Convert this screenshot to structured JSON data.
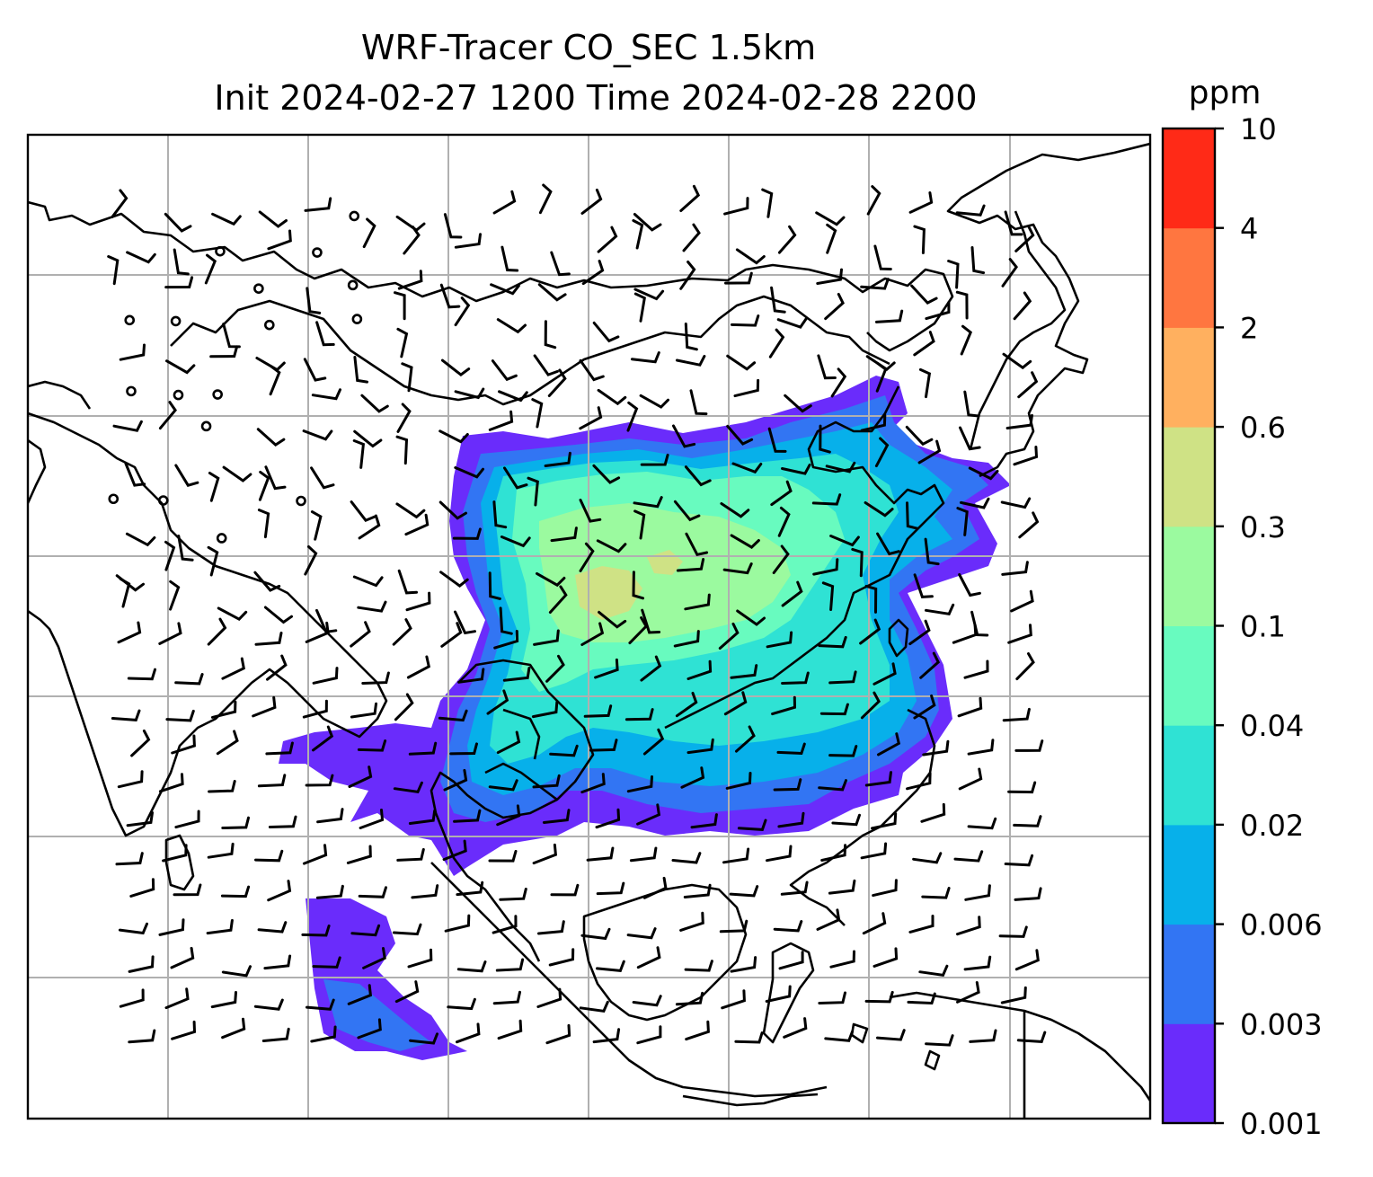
{
  "chart_data": {
    "type": "heatmap",
    "title": "WRF-Tracer CO_SEC 1.5km",
    "subtitle": "Init 2024-02-27 1200 Time 2024-02-28 2200",
    "colorbar": {
      "unit_label": "ppm",
      "tick_labels": [
        "0.001",
        "0.003",
        "0.006",
        "0.02",
        "0.04",
        "0.1",
        "0.3",
        "0.6",
        "2",
        "4",
        "10"
      ],
      "colors": [
        "#6a2cfb",
        "#3275f3",
        "#07b0ea",
        "#2fe2d4",
        "#68fbbf",
        "#9bfa9f",
        "#cfe285",
        "#ffb05f",
        "#ff7640",
        "#ff2a17"
      ]
    },
    "map": {
      "projection_extent_lon": [
        60,
        140
      ],
      "projection_extent_lat": [
        -15,
        55
      ],
      "grid": true,
      "gridline_color": "#b0b0b0",
      "plume_levels": [
        {
          "level": "0.001-0.003",
          "color": "#6a2cfb"
        },
        {
          "level": "0.003-0.006",
          "color": "#3275f3"
        },
        {
          "level": "0.006-0.02",
          "color": "#07b0ea"
        },
        {
          "level": "0.02-0.04",
          "color": "#2fe2d4"
        },
        {
          "level": "0.04-0.1",
          "color": "#68fbbf"
        },
        {
          "level": "0.1-0.3",
          "color": "#9bfa9f"
        },
        {
          "level": "0.3-0.6",
          "color": "#cfe285"
        }
      ]
    },
    "wind_barbs": {
      "shown": true,
      "calm_marker": "circle"
    }
  }
}
